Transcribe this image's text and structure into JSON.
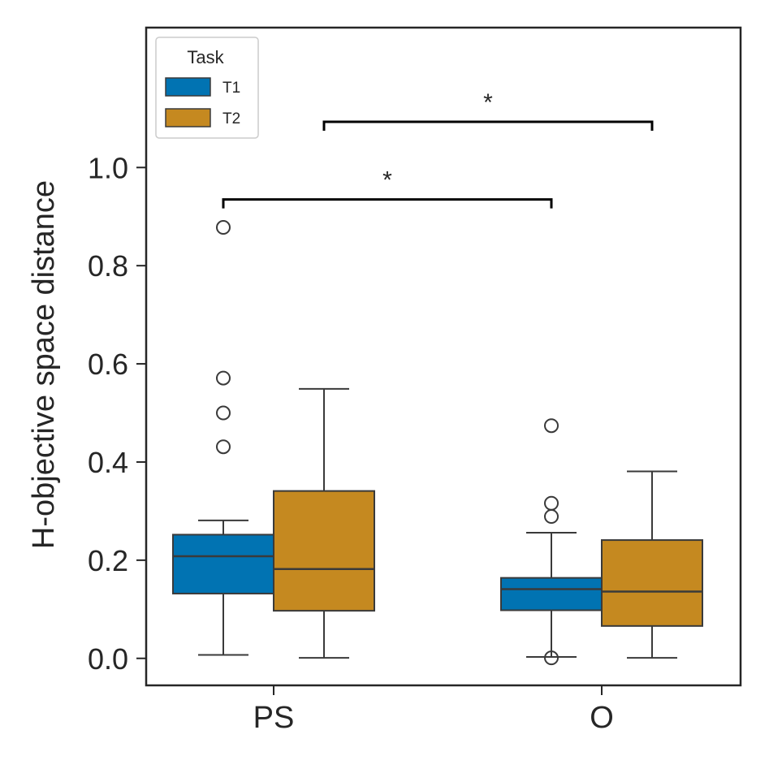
{
  "chart_data": {
    "type": "box",
    "title": "",
    "xlabel": "",
    "ylabel": "H-objective space distance",
    "ylim": [
      -0.055,
      1.285
    ],
    "yticks": [
      0.0,
      0.2,
      0.4,
      0.6,
      0.8,
      1.0
    ],
    "ytick_labels": [
      "0.0",
      "0.2",
      "0.4",
      "0.6",
      "0.8",
      "1.0"
    ],
    "categories": [
      "PS",
      "O"
    ],
    "legend": {
      "title": "Task",
      "placement": "upper-left"
    },
    "series": [
      {
        "name": "T1",
        "color": "#0173b2",
        "boxes": [
          {
            "category": "PS",
            "q1": 0.132,
            "median": 0.208,
            "q3": 0.252,
            "whisker_low": 0.007,
            "whisker_high": 0.281,
            "outliers": [
              0.878,
              0.571,
              0.5,
              0.431
            ]
          },
          {
            "category": "O",
            "q1": 0.098,
            "median": 0.141,
            "q3": 0.164,
            "whisker_low": 0.003,
            "whisker_high": 0.256,
            "outliers": [
              0.474,
              0.316,
              0.289,
              0.001
            ]
          }
        ]
      },
      {
        "name": "T2",
        "color": "#c58920",
        "boxes": [
          {
            "category": "PS",
            "q1": 0.097,
            "median": 0.182,
            "q3": 0.341,
            "whisker_low": 0.001,
            "whisker_high": 0.549,
            "outliers": []
          },
          {
            "category": "O",
            "q1": 0.066,
            "median": 0.136,
            "q3": 0.241,
            "whisker_low": 0.001,
            "whisker_high": 0.381,
            "outliers": []
          }
        ]
      }
    ],
    "annotations": [
      {
        "from": {
          "category": "PS",
          "series": "T1"
        },
        "to": {
          "category": "O",
          "series": "T1"
        },
        "y": 0.935,
        "text": "*"
      },
      {
        "from": {
          "category": "PS",
          "series": "T2"
        },
        "to": {
          "category": "O",
          "series": "T2"
        },
        "y": 1.093,
        "text": "*"
      }
    ]
  }
}
